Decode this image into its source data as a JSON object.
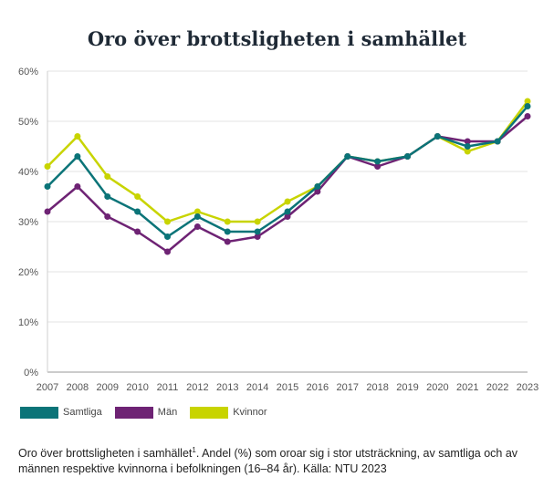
{
  "chart_data": {
    "type": "line",
    "title": "Oro över brottsligheten i samhället",
    "x": [
      "2007",
      "2008",
      "2009",
      "2010",
      "2011",
      "2012",
      "2013",
      "2014",
      "2015",
      "2016",
      "2017",
      "2018",
      "2019",
      "2020",
      "2021",
      "2022",
      "2023"
    ],
    "ylim": [
      0,
      60
    ],
    "yticks": [
      0,
      10,
      20,
      30,
      40,
      50,
      60
    ],
    "ytick_labels": [
      "0%",
      "10%",
      "20%",
      "30%",
      "40%",
      "50%",
      "60%"
    ],
    "grid": "horizontal",
    "legend_position": "bottom-left",
    "series": [
      {
        "name": "Samtliga",
        "color": "#0b7478",
        "values": [
          37,
          43,
          35,
          32,
          27,
          31,
          28,
          28,
          32,
          37,
          43,
          42,
          43,
          47,
          45,
          46,
          53
        ]
      },
      {
        "name": "Män",
        "color": "#6e2374",
        "values": [
          32,
          37,
          31,
          28,
          24,
          29,
          26,
          27,
          31,
          36,
          43,
          41,
          43,
          47,
          46,
          46,
          51
        ]
      },
      {
        "name": "Kvinnor",
        "color": "#c8d400",
        "values": [
          41,
          47,
          39,
          35,
          30,
          32,
          30,
          30,
          34,
          37,
          43,
          42,
          43,
          47,
          44,
          46,
          54
        ]
      }
    ]
  },
  "caption": {
    "text": "Oro över brottsligheten i samhället",
    "sup": "1",
    "rest": ". Andel (%) som oroar sig i stor utsträckning, av samtliga och av männen respektive kvinnorna i befolkningen (16–84 år). Källa: NTU 2023"
  }
}
